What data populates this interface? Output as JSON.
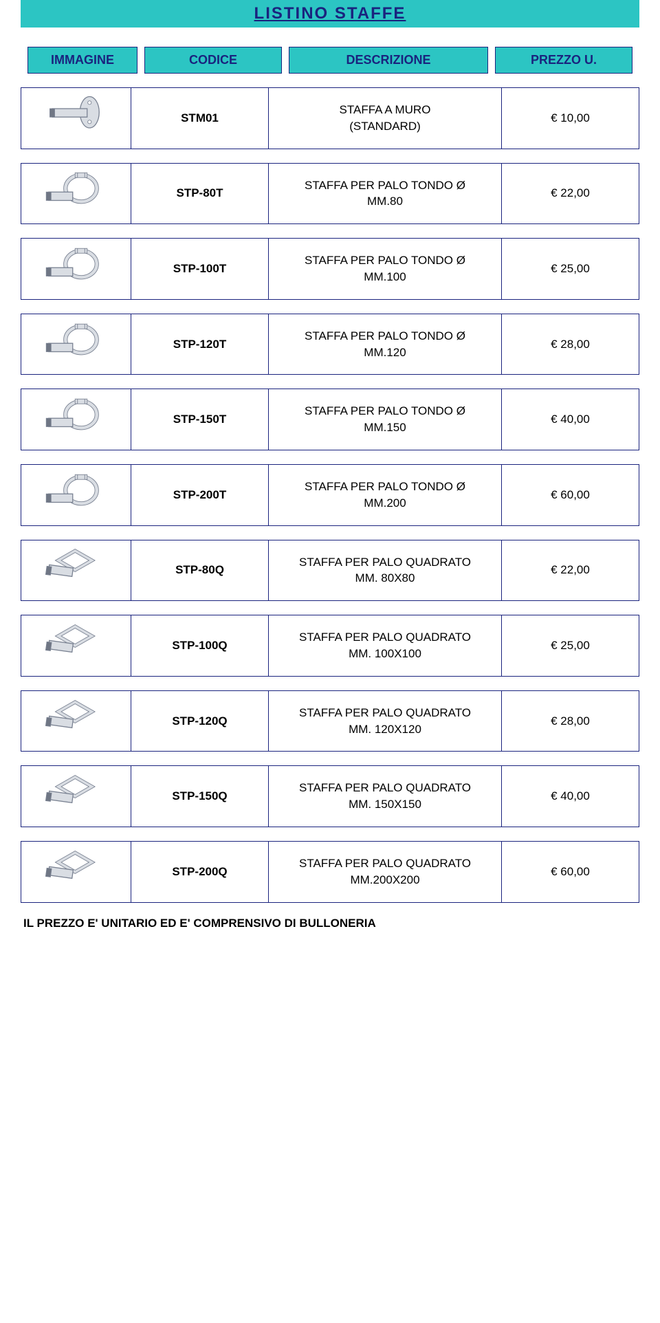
{
  "title": "LISTINO  STAFFE",
  "headers": {
    "image": "IMMAGINE",
    "code": "CODICE",
    "description": "DESCRIZIONE",
    "price": "PREZZO U."
  },
  "rows": [
    {
      "icon": "wall",
      "code": "STM01",
      "desc": "STAFFA A MURO\n(STANDARD)",
      "price": "€ 10,00"
    },
    {
      "icon": "round",
      "code": "STP-80T",
      "desc": "STAFFA PER PALO TONDO Ø\nMM.80",
      "price": "€ 22,00"
    },
    {
      "icon": "round",
      "code": "STP-100T",
      "desc": "STAFFA PER PALO TONDO Ø\nMM.100",
      "price": "€ 25,00"
    },
    {
      "icon": "round",
      "code": "STP-120T",
      "desc": "STAFFA PER PALO TONDO Ø\nMM.120",
      "price": "€ 28,00"
    },
    {
      "icon": "round",
      "code": "STP-150T",
      "desc": "STAFFA PER PALO TONDO Ø\nMM.150",
      "price": "€ 40,00"
    },
    {
      "icon": "round",
      "code": "STP-200T",
      "desc": "STAFFA PER PALO TONDO Ø\nMM.200",
      "price": "€ 60,00"
    },
    {
      "icon": "square",
      "code": "STP-80Q",
      "desc": "STAFFA PER PALO QUADRATO\nMM. 80X80",
      "price": "€ 22,00"
    },
    {
      "icon": "square",
      "code": "STP-100Q",
      "desc": "STAFFA PER PALO QUADRATO\nMM. 100X100",
      "price": "€ 25,00"
    },
    {
      "icon": "square",
      "code": "STP-120Q",
      "desc": "STAFFA PER PALO QUADRATO\nMM. 120X120",
      "price": "€ 28,00"
    },
    {
      "icon": "square",
      "code": "STP-150Q",
      "desc": "STAFFA PER PALO QUADRATO\nMM. 150X150",
      "price": "€ 40,00"
    },
    {
      "icon": "square",
      "code": "STP-200Q",
      "desc": "STAFFA PER PALO QUADRATO\nMM.200X200",
      "price": "€ 60,00"
    }
  ],
  "footer": "IL PREZZO E' UNITARIO ED E' COMPRENSIVO DI  BULLONERIA",
  "colors": {
    "header_bg": "#2cc5c3",
    "header_text": "#1a237e",
    "border": "#1a237e",
    "icon_fill": "#d9dde3",
    "icon_stroke": "#7a8292"
  }
}
